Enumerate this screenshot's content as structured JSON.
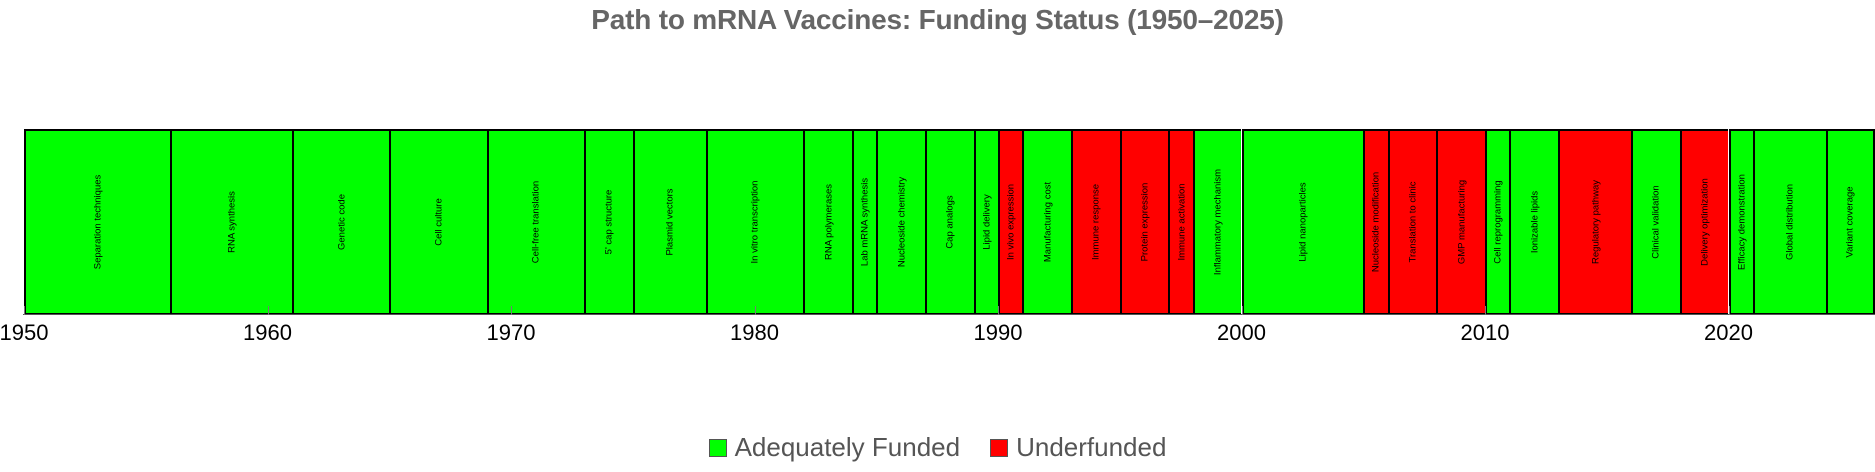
{
  "chart_data": {
    "type": "timeline",
    "title": "Path to mRNA Vaccines: Funding Status (1950–2025)",
    "xlabel": "",
    "ylabel": "",
    "xlim": [
      1950,
      2026
    ],
    "x_ticks": [
      1950,
      1960,
      1970,
      1980,
      1990,
      2000,
      2010,
      2020
    ],
    "grid": false,
    "legend_position": "bottom",
    "legend": [
      {
        "label": "Adequately Funded",
        "color": "#00ff00",
        "status": "funded"
      },
      {
        "label": "Underfunded",
        "color": "#ff0000",
        "status": "underfunded"
      }
    ],
    "segments": [
      {
        "label": "Separation techniques",
        "start": 1950,
        "end": 1956,
        "status": "funded"
      },
      {
        "label": "RNA synthesis",
        "start": 1956,
        "end": 1961,
        "status": "funded"
      },
      {
        "label": "Genetic code",
        "start": 1961,
        "end": 1965,
        "status": "funded"
      },
      {
        "label": "Cell culture",
        "start": 1965,
        "end": 1969,
        "status": "funded"
      },
      {
        "label": "Cell-free translation",
        "start": 1969,
        "end": 1973,
        "status": "funded"
      },
      {
        "label": "5' cap structure",
        "start": 1973,
        "end": 1975,
        "status": "funded"
      },
      {
        "label": "Plasmid vectors",
        "start": 1975,
        "end": 1978,
        "status": "funded"
      },
      {
        "label": "In vitro transcription",
        "start": 1978,
        "end": 1982,
        "status": "funded"
      },
      {
        "label": "RNA polymerases",
        "start": 1982,
        "end": 1984,
        "status": "funded"
      },
      {
        "label": "Lab mRNA synthesis",
        "start": 1984,
        "end": 1985,
        "status": "funded"
      },
      {
        "label": "Nucleoside chemistry",
        "start": 1985,
        "end": 1987,
        "status": "funded"
      },
      {
        "label": "Cap analogs",
        "start": 1987,
        "end": 1989,
        "status": "funded"
      },
      {
        "label": "Lipid delivery",
        "start": 1989,
        "end": 1990,
        "status": "funded"
      },
      {
        "label": "In vivo expression",
        "start": 1990,
        "end": 1991,
        "status": "underfunded"
      },
      {
        "label": "Manufacturing cost",
        "start": 1991,
        "end": 1993,
        "status": "funded"
      },
      {
        "label": "Immune response",
        "start": 1993,
        "end": 1995,
        "status": "underfunded"
      },
      {
        "label": "Protein expression",
        "start": 1995,
        "end": 1997,
        "status": "underfunded"
      },
      {
        "label": "Immune activation",
        "start": 1997,
        "end": 1998,
        "status": "underfunded"
      },
      {
        "label": "Inflammatory mechanism",
        "start": 1998,
        "end": 2000,
        "status": "funded"
      },
      {
        "label": "Lipid nanoparticles",
        "start": 2000,
        "end": 2005,
        "status": "funded"
      },
      {
        "label": "Nucleoside modification",
        "start": 2005,
        "end": 2006,
        "status": "underfunded"
      },
      {
        "label": "Translation to clinic",
        "start": 2006,
        "end": 2008,
        "status": "underfunded"
      },
      {
        "label": "GMP manufacturing",
        "start": 2008,
        "end": 2010,
        "status": "underfunded"
      },
      {
        "label": "Cell reprogramming",
        "start": 2010,
        "end": 2011,
        "status": "funded"
      },
      {
        "label": "Ionizable lipids",
        "start": 2011,
        "end": 2013,
        "status": "funded"
      },
      {
        "label": "Regulatory pathway",
        "start": 2013,
        "end": 2016,
        "status": "underfunded"
      },
      {
        "label": "Clinical validation",
        "start": 2016,
        "end": 2018,
        "status": "funded"
      },
      {
        "label": "Delivery optimization",
        "start": 2018,
        "end": 2020,
        "status": "underfunded"
      },
      {
        "label": "Efficacy demonstration",
        "start": 2020,
        "end": 2021,
        "status": "funded"
      },
      {
        "label": "Global distribution",
        "start": 2021,
        "end": 2024,
        "status": "funded"
      },
      {
        "label": "Variant coverage",
        "start": 2024,
        "end": 2026,
        "status": "funded"
      }
    ]
  },
  "colors": {
    "funded": "#00ff00",
    "underfunded": "#ff0000",
    "title": "#666666",
    "legend_text": "#555555"
  }
}
